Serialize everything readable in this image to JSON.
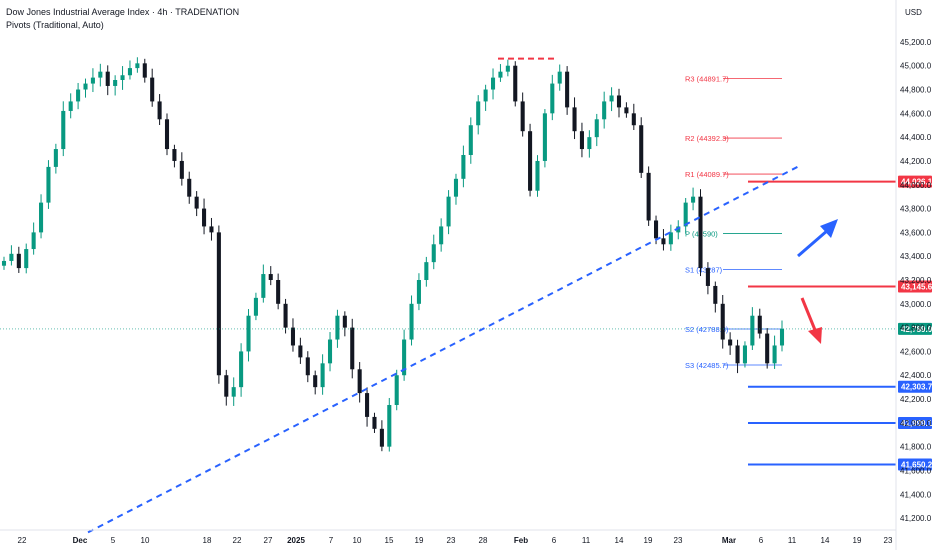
{
  "header": {
    "title": "Dow Jones Industrial Average Index · 4h · TRADENATION",
    "subtitle": "Pivots (Traditional, Auto)"
  },
  "currency": "USD",
  "colors": {
    "up": "#089981",
    "down": "#131722",
    "pivot_r": "#f23645",
    "pivot_s": "#2962ff",
    "pivot_p": "#089981",
    "level_red": "#f23645",
    "level_blue": "#2962ff",
    "trend": "#2962ff",
    "price_badge": "#089981"
  },
  "chart_data": {
    "type": "candlestick",
    "y_ticks": [
      "45,200.0",
      "45,000.0",
      "44,800.0",
      "44,600.0",
      "44,400.0",
      "44,200.0",
      "44,000.0",
      "43,800.0",
      "43,600.0",
      "43,400.0",
      "43,200.0",
      "43,000.0",
      "42,800.0",
      "42,600.0",
      "42,400.0",
      "42,200.0",
      "42,000.0",
      "41,800.0",
      "41,600.0",
      "41,400.0",
      "41,200.0"
    ],
    "y_tick_values": [
      45200,
      45000,
      44800,
      44600,
      44400,
      44200,
      44000,
      43800,
      43600,
      43400,
      43200,
      43000,
      42800,
      42600,
      42400,
      42200,
      42000,
      41800,
      41600,
      41400,
      41200
    ],
    "x_ticks": [
      "22",
      "Dec",
      "5",
      "10",
      "18",
      "22",
      "27",
      "2025",
      "7",
      "10",
      "15",
      "19",
      "23",
      "28",
      "Feb",
      "6",
      "11",
      "14",
      "19",
      "23",
      "Mar",
      "6",
      "11",
      "14",
      "19",
      "23"
    ],
    "pivots": [
      {
        "label": "R3 (44891.7)",
        "value": 44891.7,
        "kind": "r"
      },
      {
        "label": "R2 (44392.3)",
        "value": 44392.3,
        "kind": "r"
      },
      {
        "label": "R1 (44089.7)",
        "value": 44089.7,
        "kind": "r"
      },
      {
        "label": "P (43590)",
        "value": 43590,
        "kind": "p"
      },
      {
        "label": "S1 (43287)",
        "value": 43287,
        "kind": "s"
      },
      {
        "label": "S2 (42788.3)",
        "value": 42788.3,
        "kind": "s"
      },
      {
        "label": "S3 (42485.7)",
        "value": 42485.7,
        "kind": "s"
      }
    ],
    "levels": [
      {
        "label": "44,026.1",
        "value": 44026.1,
        "color": "red"
      },
      {
        "label": "43,145.6",
        "value": 43145.6,
        "color": "red"
      },
      {
        "label": "42,303.7",
        "value": 42303.7,
        "color": "blue"
      },
      {
        "label": "41,999.1",
        "value": 41999.1,
        "color": "blue"
      },
      {
        "label": "41,650.2",
        "value": 41650.2,
        "color": "blue"
      }
    ],
    "current_price": {
      "label": "42,789.0",
      "value": 42789.0
    },
    "double_top": {
      "value": 45060
    },
    "trendline": {
      "start": {
        "index": 0,
        "value": 41080
      },
      "end": {
        "index": 63,
        "value": 43100
      }
    },
    "arrows": [
      {
        "direction": "up",
        "color": "blue"
      },
      {
        "direction": "down",
        "color": "red"
      }
    ],
    "series": [
      {
        "values": [
          43360,
          43420,
          43300,
          43460,
          43600,
          43850,
          44150,
          44300,
          44620,
          44700,
          44800,
          44850,
          44900,
          44950,
          44830,
          44880,
          44920,
          44980,
          45020,
          44900,
          44700,
          44550,
          44300,
          44200,
          44050,
          43900,
          43800,
          43650,
          43600,
          42400,
          42220,
          42300,
          42600,
          42900,
          43050,
          43250,
          43200,
          43000,
          42800,
          42650,
          42550,
          42400,
          42300,
          42500,
          42700,
          42900,
          42800,
          42450,
          42250,
          42050,
          41950,
          41800,
          42150,
          42400,
          42700,
          43000,
          43200,
          43350,
          43500,
          43650,
          43900,
          44050,
          44250,
          44500,
          44700,
          44800,
          44900,
          44950,
          45000,
          44700,
          44450,
          43950,
          44200,
          44600,
          44850,
          44950,
          44650,
          44450,
          44300,
          44400,
          44550,
          44700,
          44750,
          44650,
          44600,
          44500,
          44100,
          43700,
          43550,
          43500,
          43600,
          43650,
          43850,
          43900,
          43300,
          43150,
          43000,
          42700,
          42650,
          42500,
          42650,
          42900,
          42750,
          42500,
          42650,
          42790
        ]
      }
    ]
  }
}
